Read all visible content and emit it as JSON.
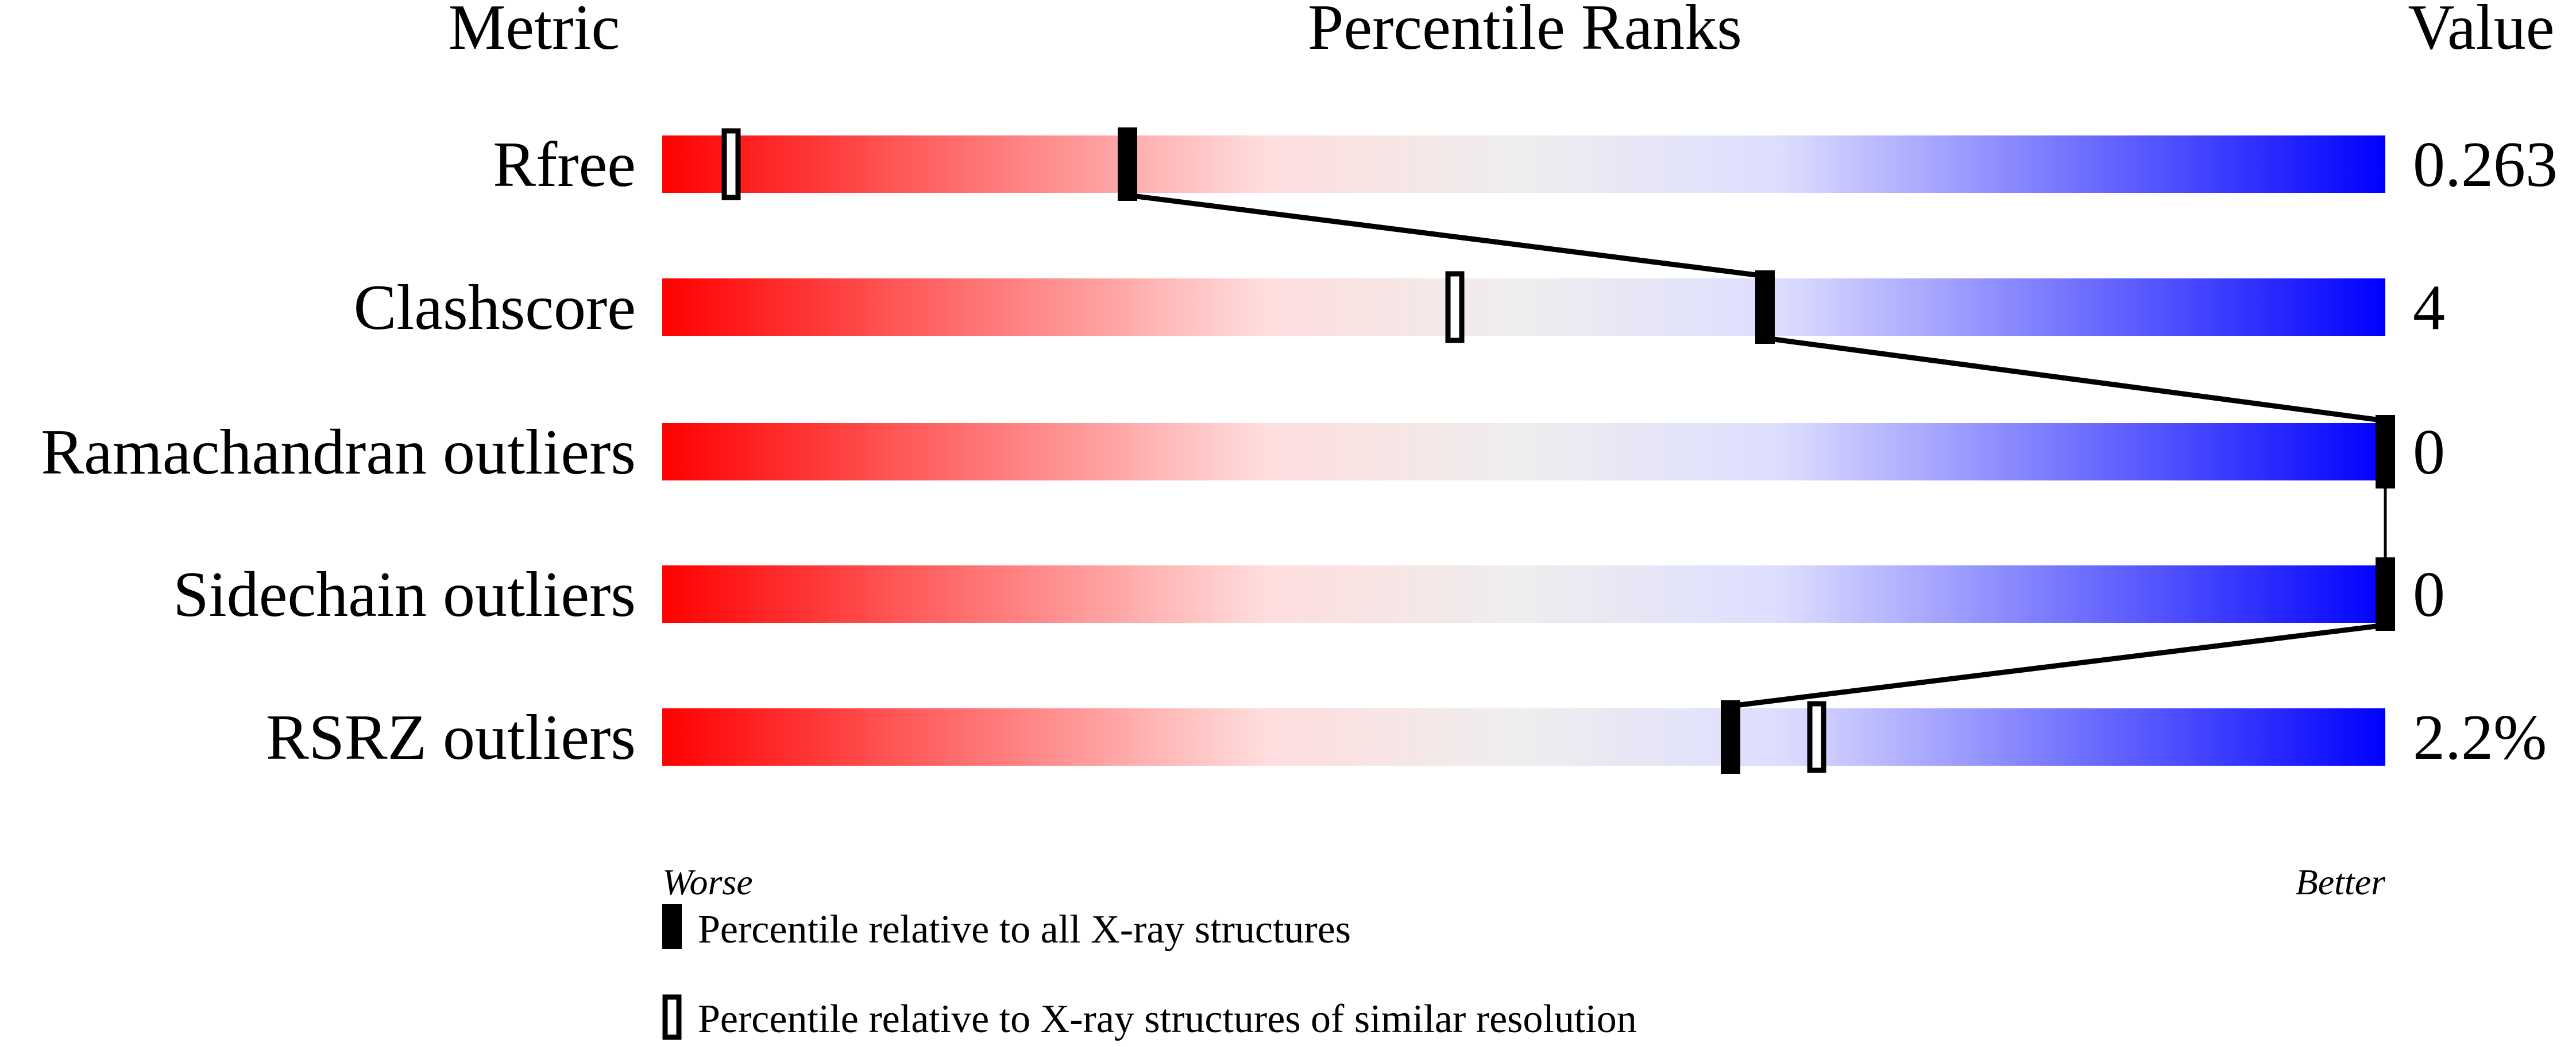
{
  "chart_data": {
    "type": "percentile-slider",
    "headers": {
      "metric": "Metric",
      "ranks": "Percentile Ranks",
      "value": "Value"
    },
    "xlim": [
      0,
      100
    ],
    "axis_labels": {
      "left": "Worse",
      "right": "Better"
    },
    "gradient_colors": [
      "#ff0000",
      "#ffdddd",
      "#eeeeee",
      "#ddddff",
      "#0000ff"
    ],
    "metrics": [
      {
        "name": "Rfree",
        "value": "0.263",
        "percentile_all": 27,
        "percentile_similar": 4
      },
      {
        "name": "Clashscore",
        "value": "4",
        "percentile_all": 64,
        "percentile_similar": 46
      },
      {
        "name": "Ramachandran outliers",
        "value": "0",
        "percentile_all": 100,
        "percentile_similar": 100
      },
      {
        "name": "Sidechain outliers",
        "value": "0",
        "percentile_all": 100,
        "percentile_similar": 100
      },
      {
        "name": "RSRZ outliers",
        "value": "2.2%",
        "percentile_all": 62,
        "percentile_similar": 67
      }
    ],
    "legend": {
      "all": "Percentile relative to all X-ray structures",
      "similar": "Percentile relative to X-ray structures of similar resolution"
    }
  }
}
